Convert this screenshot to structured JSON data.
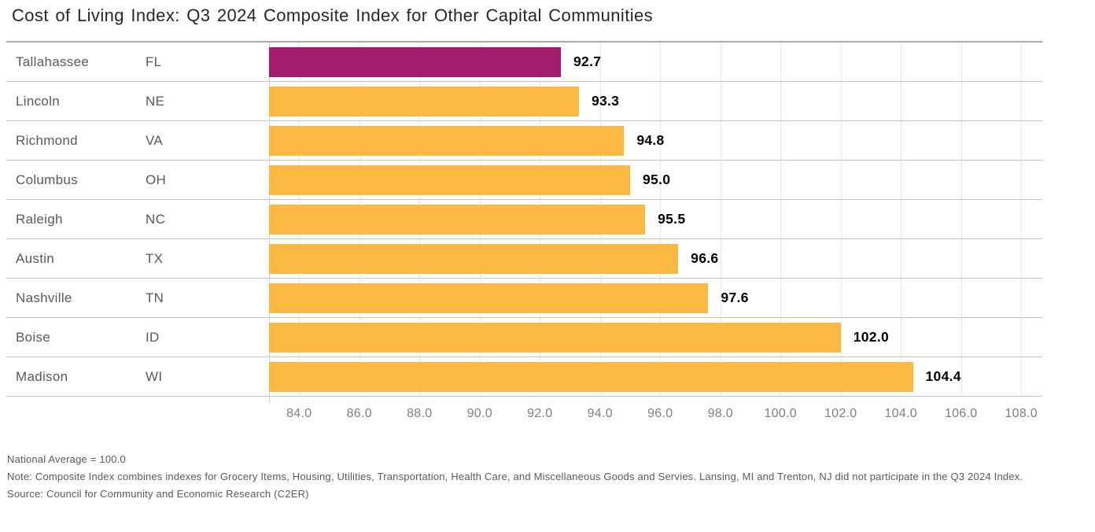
{
  "chart_data": {
    "type": "bar",
    "orientation": "horizontal",
    "title": "Cost of Living Index: Q3 2024 Composite Index for Other Capital Communities",
    "xlim": [
      83.0,
      108.7
    ],
    "grid": true,
    "tick_decimals": 1,
    "ticks": [
      84.0,
      86.0,
      88.0,
      90.0,
      92.0,
      94.0,
      96.0,
      98.0,
      100.0,
      102.0,
      104.0,
      106.0,
      108.0
    ],
    "rows": [
      {
        "city": "Tallahassee",
        "state": "FL",
        "value": 92.7,
        "highlight": true
      },
      {
        "city": "Lincoln",
        "state": "NE",
        "value": 93.3,
        "highlight": false
      },
      {
        "city": "Richmond",
        "state": "VA",
        "value": 94.8,
        "highlight": false
      },
      {
        "city": "Columbus",
        "state": "OH",
        "value": 95.0,
        "highlight": false
      },
      {
        "city": "Raleigh",
        "state": "NC",
        "value": 95.5,
        "highlight": false
      },
      {
        "city": "Austin",
        "state": "TX",
        "value": 96.6,
        "highlight": false
      },
      {
        "city": "Nashville",
        "state": "TN",
        "value": 97.6,
        "highlight": false
      },
      {
        "city": "Boise",
        "state": "ID",
        "value": 102.0,
        "highlight": false
      },
      {
        "city": "Madison",
        "state": "WI",
        "value": 104.4,
        "highlight": false
      }
    ]
  },
  "colors": {
    "highlight_bar": "#A41C6E",
    "bar": "#FBB843",
    "value_label": "#000000",
    "row_label": "#595959",
    "tick_label": "#7F7F7F",
    "note_text": "#595959",
    "grid_line": "#E9E9E9",
    "row_separator": "#C4C4C4",
    "top_border": "#A9A9A9",
    "axis_line": "#CFCFCF",
    "title_text": "#262626"
  },
  "notes": {
    "national_average": "National Average = 100.0",
    "note": "Note: Composite Index combines indexes for Grocery Items, Housing, Utilities, Transportation, Health Care, and Miscellaneous Goods and Servies. Lansing, MI and Trenton, NJ did not participate in the Q3 2024 Index.",
    "source": "Source: Council for Community and Economic Research (C2ER)"
  }
}
